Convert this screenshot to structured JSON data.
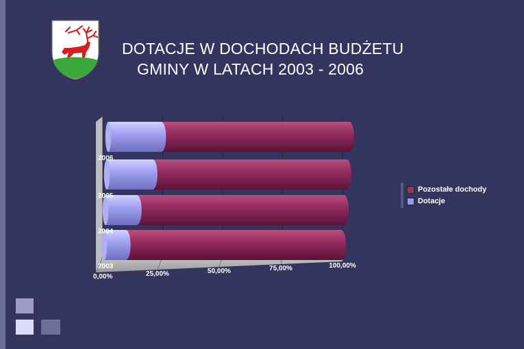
{
  "title": {
    "line1": "DOTACJE W DOCHODACH BUDŻETU",
    "line2": "GMINY W LATACH 2003 - 2006"
  },
  "logo": {
    "icon": "coat-of-arms-deer-icon"
  },
  "colors": {
    "background": "#33355f",
    "dotacje": "#9999ff",
    "pozostale": "#993366",
    "text": "#ffffff"
  },
  "chart_data": {
    "type": "bar",
    "orientation": "horizontal",
    "stacked": "percent",
    "style": "3d-cylinder",
    "categories": [
      "2003",
      "2004",
      "2005",
      "2006"
    ],
    "series": [
      {
        "name": "Dotacje",
        "values": [
          9,
          13,
          19,
          22
        ]
      },
      {
        "name": "Pozostałe dochody",
        "values": [
          91,
          87,
          81,
          78
        ]
      }
    ],
    "xticks": [
      "0,00%",
      "25,00%",
      "50,00%",
      "75,00%",
      "100,00%"
    ],
    "xlim": [
      0,
      100
    ],
    "legend_position": "right",
    "grid": true
  }
}
